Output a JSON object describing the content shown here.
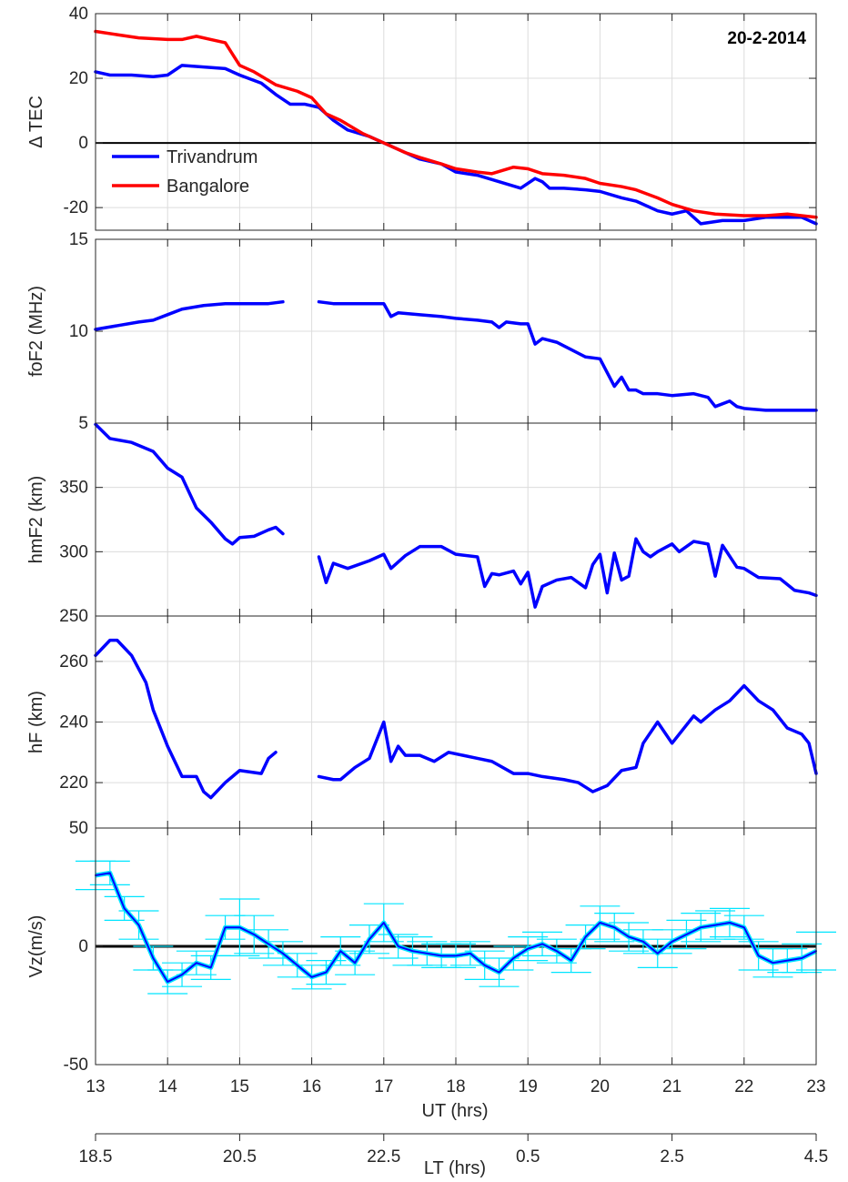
{
  "figure": {
    "date_annotation": "20-2-2014",
    "xlabel_ut": "UT (hrs)",
    "xlabel_lt": "LT (hrs)",
    "ut_ticks": [
      "13",
      "14",
      "15",
      "16",
      "17",
      "18",
      "19",
      "20",
      "21",
      "22",
      "23"
    ],
    "lt_ticks": [
      "18.5",
      "20.5",
      "22.5",
      "0.5",
      "2.5",
      "4.5"
    ]
  },
  "colors": {
    "trivandrum": "#0000ff",
    "bangalore": "#ff0000",
    "errorbar": "#00e5ff",
    "vz_line": "#0000ff",
    "grid": "#dcdcdc",
    "axis": "#262626"
  },
  "chart_data": [
    {
      "type": "line",
      "panel": "dtec",
      "ylabel": "Δ TEC",
      "xlim": [
        13,
        23
      ],
      "ylim": [
        -27,
        40
      ],
      "yticks": [
        -20,
        0,
        20,
        40
      ],
      "grid": true,
      "zero_line": true,
      "legend": "top-left",
      "series": [
        {
          "name": "Trivandrum",
          "color_key": "trivandrum",
          "x": [
            13,
            13.2,
            13.5,
            13.8,
            14.0,
            14.2,
            14.5,
            14.8,
            15.0,
            15.3,
            15.5,
            15.7,
            15.9,
            16.1,
            16.3,
            16.5,
            16.8,
            17.0,
            17.2,
            17.5,
            17.8,
            18.0,
            18.3,
            18.6,
            18.9,
            19.1,
            19.2,
            19.3,
            19.5,
            19.8,
            20.0,
            20.3,
            20.5,
            20.8,
            21.0,
            21.2,
            21.4,
            21.7,
            22.0,
            22.3,
            22.6,
            22.8,
            23.0
          ],
          "y": [
            22,
            21,
            21,
            20.5,
            21,
            24,
            23.5,
            23,
            21,
            18.5,
            15,
            12,
            12,
            11,
            7,
            4,
            2,
            0,
            -2,
            -5,
            -6.5,
            -9,
            -10,
            -12,
            -14,
            -11,
            -12,
            -14,
            -14,
            -14.5,
            -15,
            -17,
            -18,
            -21,
            -22,
            -21,
            -25,
            -24,
            -24,
            -23,
            -23,
            -23,
            -25
          ]
        },
        {
          "name": "Bangalore",
          "color_key": "bangalore",
          "x": [
            13,
            13.3,
            13.6,
            14.0,
            14.2,
            14.4,
            14.6,
            14.8,
            15.0,
            15.2,
            15.5,
            15.8,
            16.0,
            16.2,
            16.4,
            16.7,
            17.0,
            17.3,
            17.5,
            17.8,
            18.0,
            18.3,
            18.5,
            18.8,
            19.0,
            19.2,
            19.5,
            19.8,
            20.0,
            20.3,
            20.5,
            20.8,
            21.0,
            21.3,
            21.6,
            22.0,
            22.3,
            22.6,
            23.0
          ],
          "y": [
            34.5,
            33.5,
            32.5,
            32,
            32,
            33,
            32,
            31,
            24,
            22,
            18,
            16,
            14,
            9,
            7,
            3,
            0,
            -3,
            -4.5,
            -6.5,
            -8,
            -9,
            -9.5,
            -7.5,
            -8,
            -9.5,
            -10,
            -11,
            -12.5,
            -13.5,
            -14.5,
            -17,
            -19,
            -21,
            -22,
            -22.5,
            -22.5,
            -22,
            -23
          ]
        }
      ]
    },
    {
      "type": "line",
      "panel": "fof2",
      "ylabel": "foF2 (MHz)",
      "xlim": [
        13,
        23
      ],
      "ylim": [
        5,
        15
      ],
      "yticks": [
        5,
        10,
        15
      ],
      "grid": true,
      "series": [
        {
          "color_key": "trivandrum",
          "x": [
            13,
            13.3,
            13.6,
            13.8,
            14.0,
            14.2,
            14.5,
            14.8,
            15.0,
            15.2,
            15.4,
            15.6,
            null,
            16.1,
            16.3,
            16.5,
            16.8,
            17.0,
            17.1,
            17.2,
            17.5,
            17.8,
            18.0,
            18.3,
            18.5,
            18.6,
            18.7,
            18.9,
            19.0,
            19.1,
            19.2,
            19.4,
            19.6,
            19.8,
            20.0,
            20.2,
            20.3,
            20.4,
            20.5,
            20.6,
            20.8,
            21.0,
            21.3,
            21.5,
            21.6,
            21.8,
            21.9,
            22.0,
            22.3,
            22.6,
            22.8,
            23.0
          ],
          "y": [
            10.1,
            10.3,
            10.5,
            10.6,
            10.9,
            11.2,
            11.4,
            11.5,
            11.5,
            11.5,
            11.5,
            11.6,
            null,
            11.6,
            11.5,
            11.5,
            11.5,
            11.5,
            10.8,
            11,
            10.9,
            10.8,
            10.7,
            10.6,
            10.5,
            10.2,
            10.5,
            10.4,
            10.4,
            9.3,
            9.6,
            9.4,
            9.0,
            8.6,
            8.5,
            7.0,
            7.5,
            6.8,
            6.8,
            6.6,
            6.6,
            6.5,
            6.6,
            6.4,
            5.9,
            6.2,
            5.9,
            5.8,
            5.7,
            5.7,
            5.7,
            5.7
          ]
        }
      ]
    },
    {
      "type": "line",
      "panel": "hmf2",
      "ylabel": "hmF2 (km)",
      "xlim": [
        13,
        23
      ],
      "ylim": [
        250,
        400
      ],
      "yticks": [
        250,
        300,
        350
      ],
      "grid": true,
      "series": [
        {
          "color_key": "trivandrum",
          "x": [
            13,
            13.2,
            13.5,
            13.8,
            14.0,
            14.2,
            14.4,
            14.6,
            14.8,
            14.9,
            15.0,
            15.2,
            15.4,
            15.5,
            15.6,
            null,
            16.1,
            16.2,
            16.3,
            16.5,
            16.8,
            17.0,
            17.1,
            17.3,
            17.5,
            17.8,
            18.0,
            18.3,
            18.4,
            18.5,
            18.6,
            18.8,
            18.9,
            19.0,
            19.1,
            19.2,
            19.4,
            19.6,
            19.8,
            19.9,
            20.0,
            20.1,
            20.2,
            20.3,
            20.4,
            20.5,
            20.6,
            20.7,
            20.8,
            21.0,
            21.1,
            21.3,
            21.5,
            21.6,
            21.7,
            21.9,
            22.0,
            22.2,
            22.5,
            22.7,
            22.9,
            23.0
          ],
          "y": [
            399,
            388,
            385,
            378,
            365,
            358,
            334,
            323,
            310,
            306,
            311,
            312,
            317,
            319,
            314,
            null,
            296,
            276,
            291,
            287,
            293,
            298,
            287,
            297,
            304,
            304,
            298,
            296,
            273,
            283,
            282,
            285,
            275,
            284,
            257,
            273,
            278,
            280,
            272,
            290,
            298,
            268,
            299,
            278,
            281,
            310,
            300,
            296,
            300,
            306,
            300,
            308,
            306,
            281,
            305,
            288,
            287,
            280,
            279,
            270,
            268,
            266
          ]
        }
      ]
    },
    {
      "type": "line",
      "panel": "hf",
      "ylabel": "hF (km)",
      "xlim": [
        13,
        23
      ],
      "ylim": [
        205,
        275
      ],
      "yticks": [
        220,
        240,
        260
      ],
      "grid": true,
      "series": [
        {
          "color_key": "trivandrum",
          "x": [
            13,
            13.2,
            13.3,
            13.5,
            13.7,
            13.8,
            14.0,
            14.2,
            14.4,
            14.5,
            14.6,
            14.8,
            15.0,
            15.3,
            15.4,
            15.5,
            15.6,
            null,
            16.1,
            16.3,
            16.4,
            16.6,
            16.8,
            17.0,
            17.1,
            17.2,
            17.3,
            17.5,
            17.7,
            17.9,
            18.1,
            18.3,
            18.5,
            18.8,
            19.0,
            19.2,
            19.5,
            19.7,
            19.9,
            20.1,
            20.3,
            20.5,
            20.6,
            20.8,
            21.0,
            21.1,
            21.3,
            21.4,
            21.6,
            21.8,
            22.0,
            22.2,
            22.4,
            22.6,
            22.8,
            22.9,
            23.0
          ],
          "y": [
            262,
            267,
            267,
            262,
            253,
            244,
            232,
            222,
            222,
            217,
            215,
            220,
            224,
            223,
            228,
            230,
            null,
            220,
            222,
            221,
            221,
            225,
            228,
            240,
            227,
            232,
            229,
            229,
            227,
            230,
            229,
            228,
            227,
            223,
            223,
            222,
            221,
            220,
            217,
            219,
            224,
            225,
            233,
            240,
            233,
            236,
            242,
            240,
            244,
            247,
            252,
            247,
            244,
            238,
            236,
            233,
            223
          ]
        }
      ]
    },
    {
      "type": "line",
      "panel": "vz",
      "ylabel": "Vz(m/s)",
      "xlim": [
        13,
        23
      ],
      "ylim": [
        -50,
        50
      ],
      "yticks": [
        -50,
        0,
        50
      ],
      "grid": true,
      "zero_line": true,
      "error_bars": true,
      "series": [
        {
          "color_key": "vz_line",
          "x": [
            13.0,
            13.2,
            13.4,
            13.6,
            13.8,
            14.0,
            14.2,
            14.4,
            14.6,
            14.8,
            15.0,
            15.2,
            15.4,
            15.6,
            15.8,
            16.0,
            16.2,
            16.4,
            16.6,
            16.8,
            17.0,
            17.2,
            17.4,
            17.6,
            17.8,
            18.0,
            18.2,
            18.4,
            18.6,
            18.8,
            19.0,
            19.2,
            19.4,
            19.6,
            19.8,
            20.0,
            20.2,
            20.4,
            20.6,
            20.8,
            21.0,
            21.2,
            21.4,
            21.6,
            21.8,
            22.0,
            22.2,
            22.4,
            22.6,
            22.8,
            23.0
          ],
          "y": [
            30,
            31,
            16,
            9,
            -5,
            -15,
            -12,
            -7,
            -9,
            8,
            8,
            5,
            1,
            -3,
            -8,
            -13,
            -11,
            -2,
            -7,
            3,
            10,
            0,
            -2,
            -3,
            -4,
            -4,
            -3,
            -8,
            -11,
            -5,
            -1,
            1,
            -2,
            -6,
            4,
            10,
            8,
            4,
            2,
            -3,
            2,
            5,
            8,
            9,
            10,
            8,
            -4,
            -7,
            -6,
            -5,
            -2
          ],
          "err": [
            6,
            5,
            5,
            6,
            5,
            5,
            5,
            5,
            5,
            5,
            12,
            8,
            6,
            5,
            5,
            5,
            5,
            6,
            5,
            6,
            8,
            5,
            6,
            5,
            5,
            5,
            5,
            6,
            6,
            5,
            5,
            5,
            5,
            5,
            5,
            7,
            6,
            6,
            5,
            6,
            5,
            6,
            6,
            6,
            6,
            5,
            6,
            6,
            5,
            6,
            8
          ]
        }
      ]
    }
  ]
}
